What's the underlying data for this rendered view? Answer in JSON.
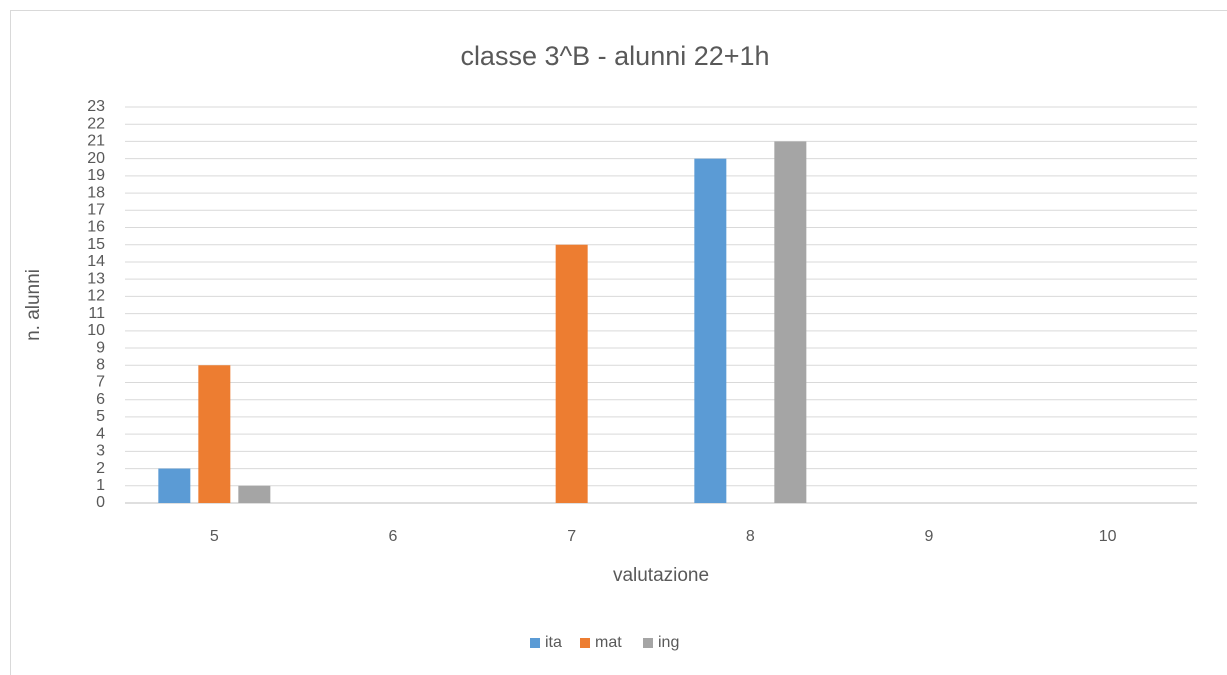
{
  "chart_data": {
    "type": "bar",
    "title": "classe 3^B - alunni 22+1h",
    "x_label": "valutazione",
    "y_label": "n. alunni",
    "categories": [
      "5",
      "6",
      "7",
      "8",
      "9",
      "10"
    ],
    "series": [
      {
        "name": "ita",
        "color": "#5b9bd5",
        "values": [
          2,
          0,
          0,
          20,
          0,
          0
        ]
      },
      {
        "name": "mat",
        "color": "#ed7d31",
        "values": [
          8,
          0,
          15,
          0,
          0,
          0
        ]
      },
      {
        "name": "ing",
        "color": "#a5a5a5",
        "values": [
          1,
          0,
          0,
          21,
          0,
          0
        ]
      }
    ],
    "ylim": [
      0,
      23
    ],
    "yticks": [
      0,
      1,
      2,
      3,
      4,
      5,
      6,
      7,
      8,
      9,
      10,
      11,
      12,
      13,
      14,
      15,
      16,
      17,
      18,
      19,
      20,
      21,
      22,
      23
    ],
    "grid": true,
    "legend": "bottom"
  }
}
